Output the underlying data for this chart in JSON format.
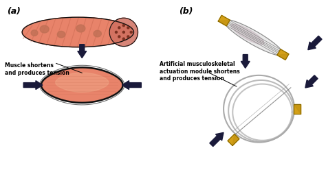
{
  "bg_color": "#ffffff",
  "label_a": "(a)",
  "label_b": "(b)",
  "text_muscle": "Muscle shortens\nand produces tension",
  "text_artificial": "Artificial musculoskeletal\nactuation module shortens\nand produces tension",
  "muscle_color": "#E8836A",
  "muscle_color2": "#d97060",
  "muscle_dark": "#C96850",
  "muscle_outline": "#111111",
  "tube_color": "#E8836A",
  "tube_stripe": "#C96850",
  "gold_color": "#D4A017",
  "gold_dark": "#8a6a00",
  "gold_mid": "#c09010",
  "gray_light": "#e8e8e8",
  "gray_medium": "#aaaaaa",
  "gray_dark": "#888888",
  "pink_inner": "#e8c8cc",
  "arrow_color": "#1a1a3a",
  "font_size_label": 9,
  "font_size_text": 5.5,
  "font_bold": "bold"
}
